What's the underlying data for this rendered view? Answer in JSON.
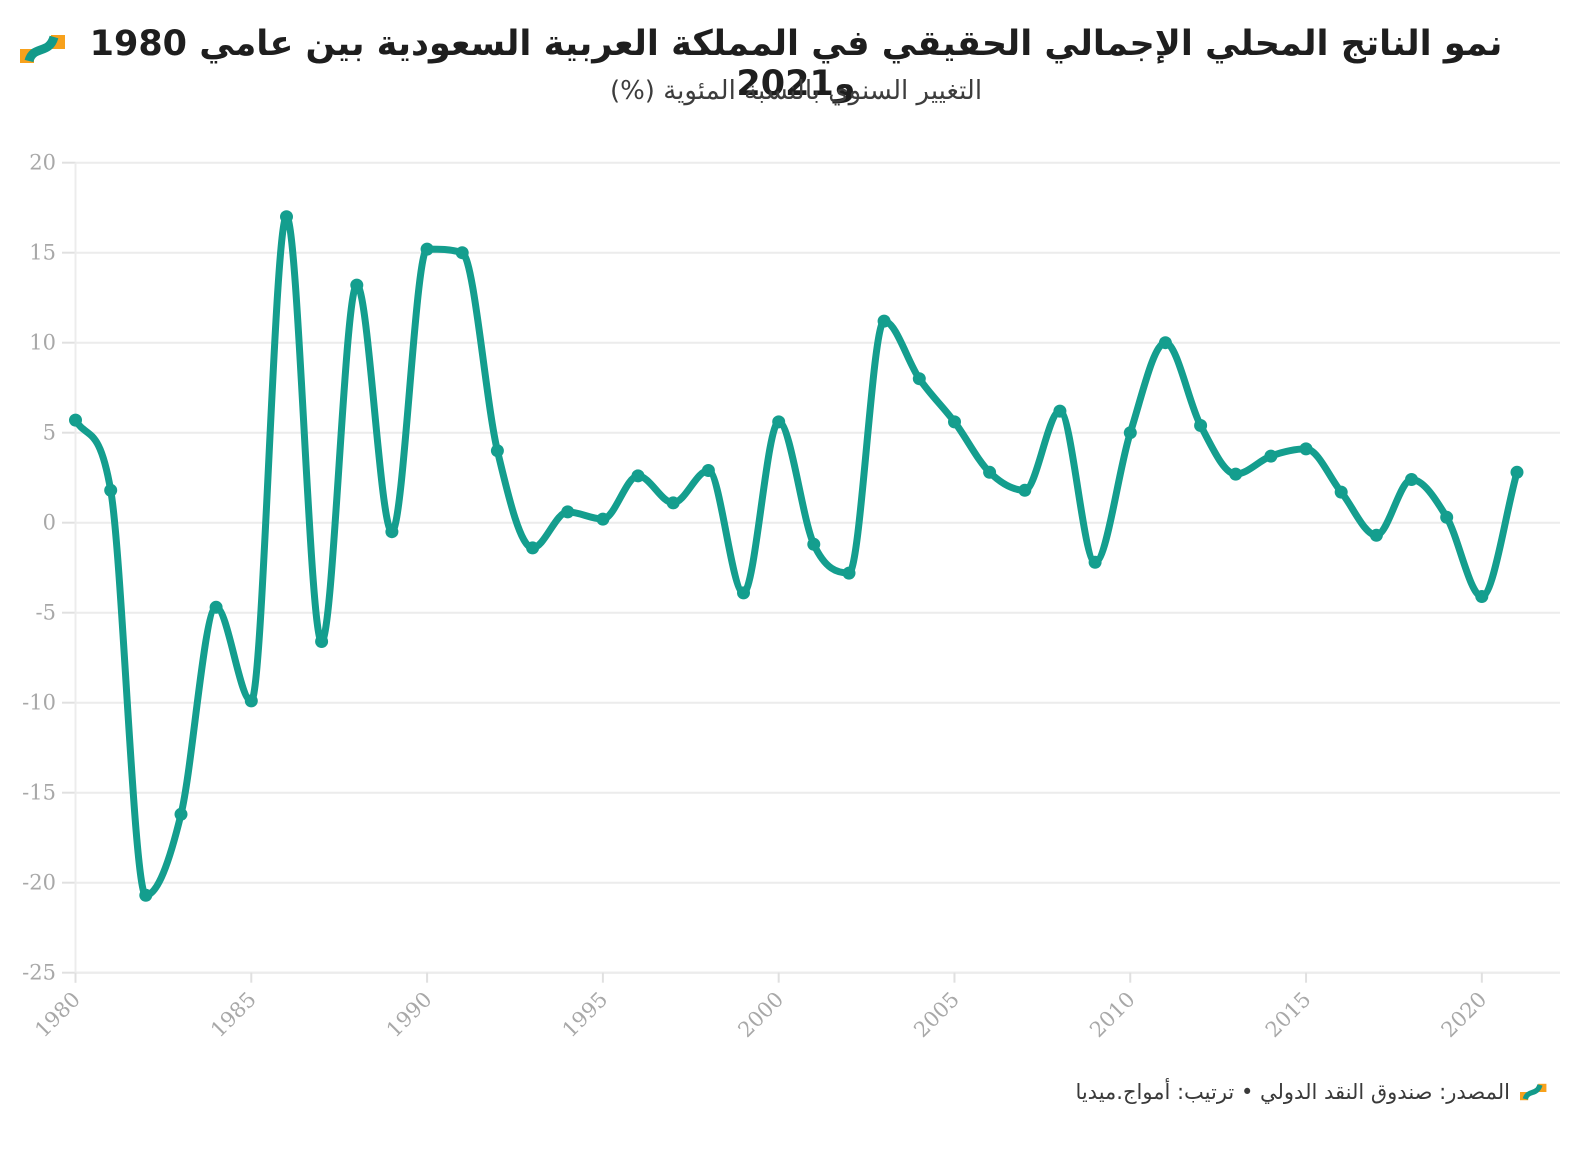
{
  "header": {
    "title": "نمو الناتج المحلي الإجمالي الحقيقي في المملكة العربية السعودية بين عامي 1980 و2021",
    "subtitle": "التغيير السنوي بالنسبة المئوية (%)"
  },
  "footer": {
    "source_line": "المصدر: صندوق النقد الدولي • ترتيب: أمواج.ميديا"
  },
  "branding": {
    "logo_name": "amwaj-media-mark",
    "orange": "#f7a11c",
    "teal": "#129a8a"
  },
  "chart_data": {
    "type": "line",
    "title": "نمو الناتج المحلي الإجمالي الحقيقي في المملكة العربية السعودية بين عامي 1980 و2021",
    "subtitle": "التغيير السنوي بالنسبة المئوية (%)",
    "xlabel": "",
    "ylabel": "",
    "x": [
      1980,
      1981,
      1982,
      1983,
      1984,
      1985,
      1986,
      1987,
      1988,
      1989,
      1990,
      1991,
      1992,
      1993,
      1994,
      1995,
      1996,
      1997,
      1998,
      1999,
      2000,
      2001,
      2002,
      2003,
      2004,
      2005,
      2006,
      2007,
      2008,
      2009,
      2010,
      2011,
      2012,
      2013,
      2014,
      2015,
      2016,
      2017,
      2018,
      2019,
      2020,
      2021
    ],
    "series": [
      {
        "name": "نمو الناتج المحلي الإجمالي الحقيقي (%)",
        "values": [
          5.7,
          1.8,
          -20.7,
          -16.2,
          -4.7,
          -9.9,
          17.0,
          -6.6,
          13.2,
          -0.5,
          15.2,
          15.0,
          4.0,
          -1.4,
          0.6,
          0.2,
          2.6,
          1.1,
          2.9,
          -3.9,
          5.6,
          -1.2,
          -2.8,
          11.2,
          8.0,
          5.6,
          2.8,
          1.8,
          6.2,
          -2.2,
          5.0,
          10.0,
          5.4,
          2.7,
          3.7,
          4.1,
          1.7,
          -0.7,
          2.4,
          0.3,
          -4.1,
          2.8
        ]
      }
    ],
    "ylim": [
      -25,
      20
    ],
    "y_tick_step": 5,
    "y_ticks": [
      20,
      15,
      10,
      5,
      0,
      -5,
      -10,
      -15,
      -20,
      -25
    ],
    "x_ticks": [
      1980,
      1985,
      1990,
      1995,
      2000,
      2005,
      2010,
      2015,
      2020
    ],
    "grid": "horizontal",
    "legend": "none",
    "curve": "smooth-monotone",
    "marker": "circle",
    "line_color": "#149e8e",
    "grid_color": "#ececec",
    "axis_tick_color": "#e0e0e0",
    "axis_text_color": "#a8a8a8"
  }
}
